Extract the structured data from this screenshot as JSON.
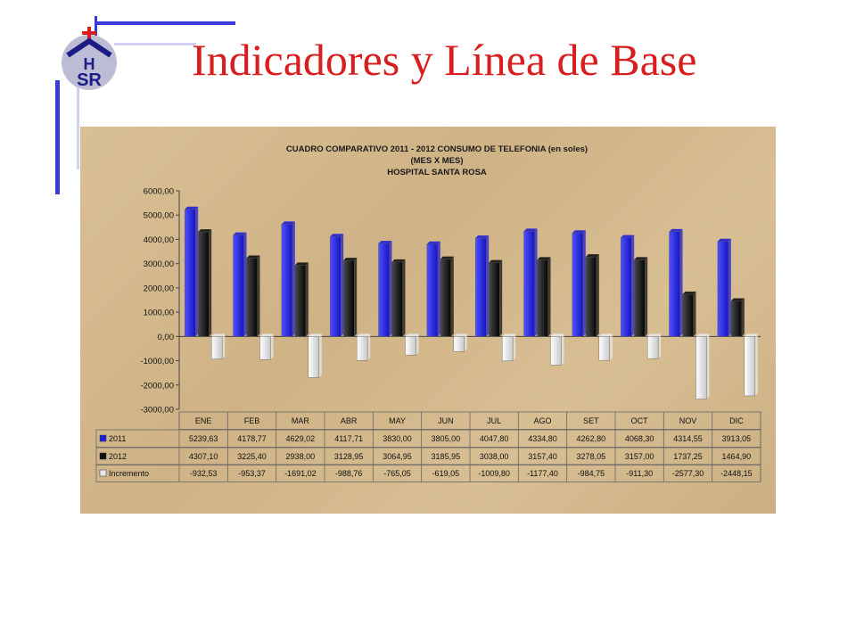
{
  "slide": {
    "title": "Indicadores y Línea de Base",
    "logo_text": "HSR"
  },
  "colors": {
    "title": "#d81e1e",
    "deco_blue": "#3a3ad8",
    "series_2011": "#1f1fd6",
    "series_2012": "#111111",
    "series_increment": "#e8e8e8"
  },
  "chart_data": {
    "type": "bar",
    "title": [
      "CUADRO COMPARATIVO 2011 - 2012   CONSUMO  DE TELEFONIA (en soles)",
      "(MES X MES)",
      "HOSPITAL SANTA ROSA"
    ],
    "categories": [
      "ENE",
      "FEB",
      "MAR",
      "ABR",
      "MAY",
      "JUN",
      "JUL",
      "AGO",
      "SET",
      "OCT",
      "NOV",
      "DIC"
    ],
    "ylim": [
      -3000,
      6000
    ],
    "yticks": [
      "6000,00",
      "5000,00",
      "4000,00",
      "3000,00",
      "2000,00",
      "1000,00",
      "0,00",
      "-1000,00",
      "-2000,00",
      "-3000,00"
    ],
    "grid": false,
    "legend": "data-table",
    "series": [
      {
        "name": "2011",
        "values": [
          5239.63,
          4178.77,
          4629.02,
          4117.71,
          3830.0,
          3805.0,
          4047.8,
          4334.8,
          4262.8,
          4068.3,
          4314.55,
          3913.05
        ],
        "labels": [
          "5239,63",
          "4178,77",
          "4629,02",
          "4117,71",
          "3830,00",
          "3805,00",
          "4047,80",
          "4334,80",
          "4262,80",
          "4068,30",
          "4314,55",
          "3913,05"
        ]
      },
      {
        "name": "2012",
        "values": [
          4307.1,
          3225.4,
          2938.0,
          3128.95,
          3064.95,
          3185.95,
          3038.0,
          3157.4,
          3278.05,
          3157.0,
          1737.25,
          1464.9
        ],
        "labels": [
          "4307,10",
          "3225,40",
          "2938,00",
          "3128,95",
          "3064,95",
          "3185,95",
          "3038,00",
          "3157,40",
          "3278,05",
          "3157,00",
          "1737,25",
          "1464,90"
        ]
      },
      {
        "name": "Incremento",
        "values": [
          -932.53,
          -953.37,
          -1691.02,
          -988.76,
          -765.05,
          -619.05,
          -1009.8,
          -1177.4,
          -984.75,
          -911.3,
          -2577.3,
          -2448.15
        ],
        "labels": [
          "-932,53",
          "-953,37",
          "-1691,02",
          "-988,76",
          "-765,05",
          "-619,05",
          "-1009,80",
          "-1177,40",
          "-984,75",
          "-911,30",
          "-2577,30",
          "-2448,15"
        ]
      }
    ]
  }
}
